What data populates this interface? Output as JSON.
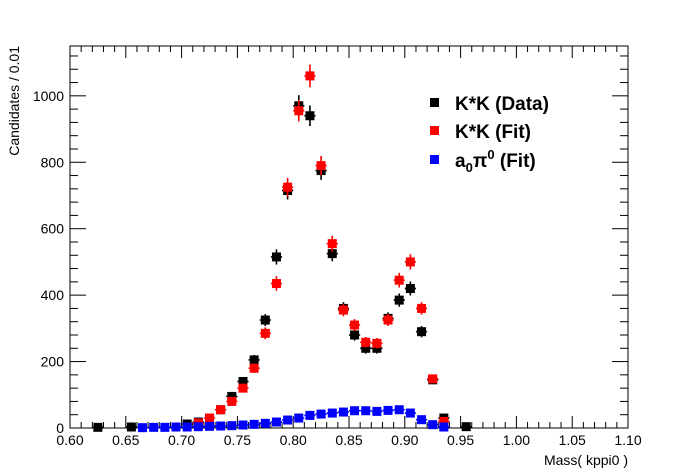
{
  "chart_data": {
    "type": "scatter",
    "xlabel": "Mass( kppi0 )",
    "ylabel": "Candidates / 0.01",
    "xlim": [
      0.6,
      1.1
    ],
    "ylim": [
      0,
      1150
    ],
    "xticks": [
      "0.60",
      "0.65",
      "0.70",
      "0.75",
      "0.80",
      "0.85",
      "0.90",
      "0.95",
      "1.00",
      "1.05",
      "1.10"
    ],
    "yticks": [
      "0",
      "200",
      "400",
      "600",
      "800",
      "1000"
    ],
    "legend_position": "top-right",
    "series": [
      {
        "name": "K*K (Data)",
        "color": "#000000",
        "x": [
          0.625,
          0.655,
          0.705,
          0.715,
          0.735,
          0.745,
          0.755,
          0.765,
          0.775,
          0.785,
          0.795,
          0.805,
          0.815,
          0.825,
          0.835,
          0.845,
          0.855,
          0.865,
          0.875,
          0.885,
          0.895,
          0.905,
          0.915,
          0.925,
          0.935,
          0.955
        ],
        "y": [
          2,
          3,
          12,
          18,
          55,
          95,
          140,
          205,
          325,
          515,
          715,
          970,
          940,
          775,
          525,
          360,
          280,
          240,
          240,
          330,
          385,
          420,
          290,
          145,
          30,
          4
        ],
        "err": [
          2,
          2,
          4,
          5,
          8,
          10,
          12,
          15,
          18,
          23,
          27,
          32,
          31,
          28,
          23,
          19,
          17,
          16,
          16,
          18,
          20,
          21,
          17,
          12,
          6,
          2
        ]
      },
      {
        "name": "K*K (Fit)",
        "color": "#ff0000",
        "x": [
          0.715,
          0.725,
          0.735,
          0.745,
          0.755,
          0.765,
          0.775,
          0.785,
          0.795,
          0.805,
          0.815,
          0.825,
          0.835,
          0.845,
          0.855,
          0.865,
          0.875,
          0.885,
          0.895,
          0.905,
          0.915,
          0.925,
          0.935
        ],
        "y": [
          15,
          30,
          55,
          80,
          120,
          180,
          285,
          435,
          725,
          955,
          1060,
          790,
          555,
          355,
          310,
          258,
          255,
          325,
          445,
          500,
          360,
          148,
          20
        ],
        "err": [
          4,
          6,
          8,
          10,
          12,
          14,
          18,
          22,
          28,
          32,
          34,
          29,
          24,
          19,
          18,
          16,
          16,
          18,
          22,
          23,
          19,
          12,
          5
        ]
      },
      {
        "name": "a0π0 (Fit)",
        "color": "#0000ff",
        "x": [
          0.665,
          0.675,
          0.685,
          0.695,
          0.705,
          0.715,
          0.725,
          0.735,
          0.745,
          0.755,
          0.765,
          0.775,
          0.785,
          0.795,
          0.805,
          0.815,
          0.825,
          0.835,
          0.845,
          0.855,
          0.865,
          0.875,
          0.885,
          0.895,
          0.905,
          0.915,
          0.925,
          0.935
        ],
        "y": [
          1,
          2,
          2,
          3,
          3,
          4,
          5,
          6,
          7,
          9,
          11,
          14,
          18,
          24,
          30,
          38,
          42,
          45,
          48,
          52,
          52,
          50,
          53,
          55,
          45,
          25,
          10,
          3
        ],
        "err": [
          0,
          0,
          0,
          0,
          0,
          0,
          0,
          0,
          0,
          0,
          0,
          0,
          0,
          0,
          0,
          0,
          0,
          0,
          0,
          0,
          0,
          0,
          0,
          0,
          0,
          0,
          0,
          0
        ]
      }
    ]
  },
  "legend": {
    "data_label": "K*K (Data)",
    "fit_label": "K*K (Fit)",
    "a0_base": "a",
    "a0_sub": "0",
    "a0_pi": "π",
    "a0_sup": "0",
    "a0_rest": " (Fit)"
  }
}
